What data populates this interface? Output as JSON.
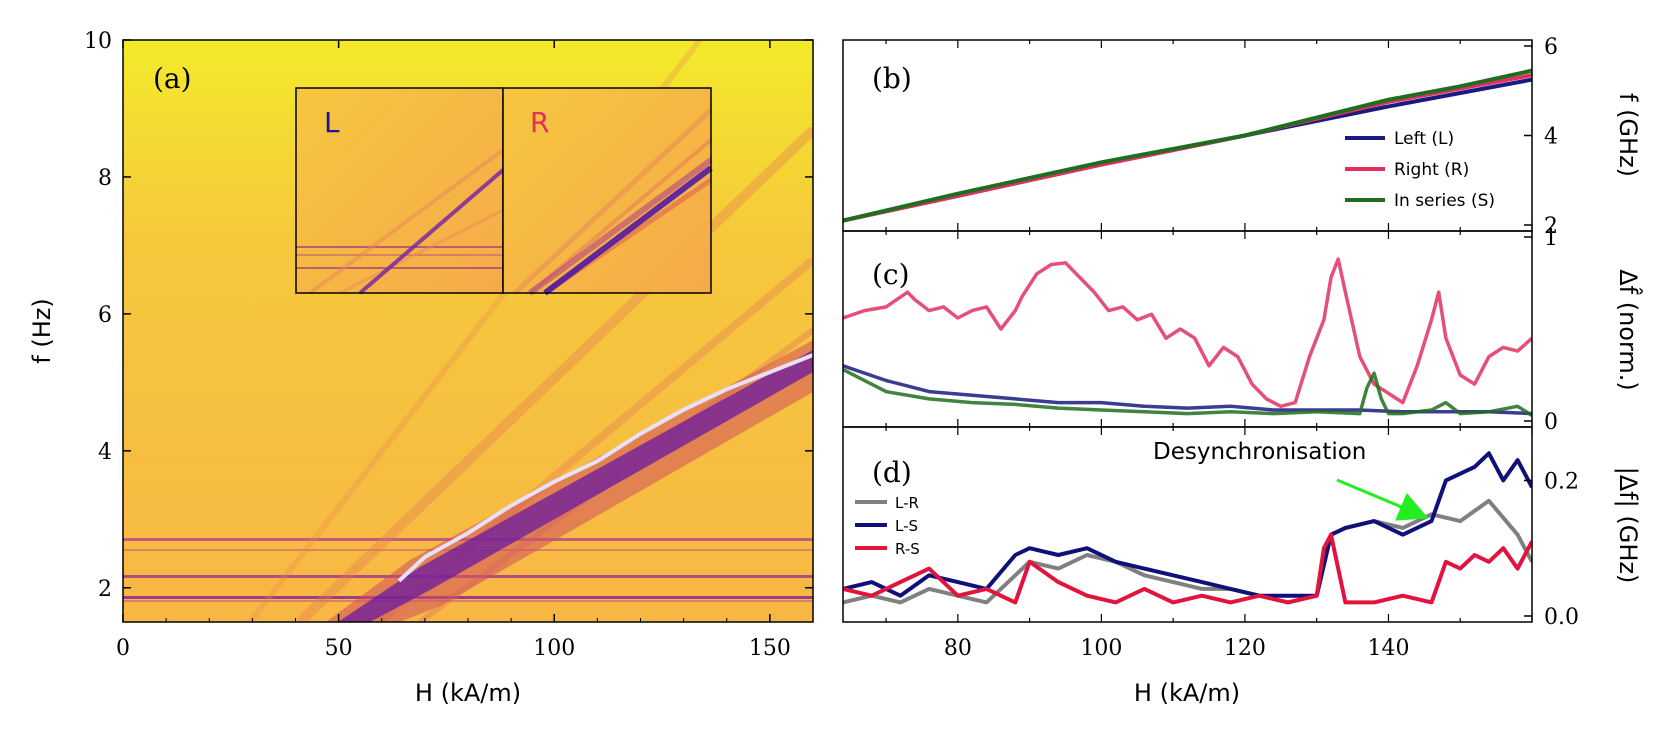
{
  "colors": {
    "left": "#1a1a80",
    "right": "#e03060",
    "series": "#1f6e1f",
    "lr": "#808080",
    "ls": "#10107a",
    "rs": "#e0143c",
    "trace": "#e8e0f8",
    "arrow": "#22ee22"
  },
  "chart_data": [
    {
      "id": "a",
      "type": "heatmap",
      "panel_label": "(a)",
      "xlabel": "H (kA/m)",
      "ylabel": "f (Hz)",
      "xlim": [
        0,
        160
      ],
      "ylim": [
        1.5,
        10
      ],
      "xticks": [
        "0",
        "50",
        "100",
        "150"
      ],
      "yticks": [
        "2",
        "4",
        "6",
        "8",
        "10"
      ],
      "trace": {
        "x": [
          64,
          70,
          80,
          90,
          100,
          110,
          120,
          130,
          140,
          150,
          160
        ],
        "y": [
          2.1,
          2.45,
          2.8,
          3.2,
          3.55,
          3.85,
          4.25,
          4.6,
          4.9,
          5.15,
          5.4
        ]
      },
      "inset_labels": [
        "L",
        "R"
      ]
    },
    {
      "id": "b",
      "type": "line",
      "panel_label": "(b)",
      "ylabel": "f (GHz)",
      "xlim": [
        64,
        160
      ],
      "ylim": [
        2,
        6
      ],
      "yticks": [
        "2",
        "4",
        "6"
      ],
      "series": [
        {
          "name": "Left (L)",
          "x": [
            64,
            80,
            100,
            120,
            140,
            150,
            160
          ],
          "values": [
            2.1,
            2.65,
            3.35,
            4.0,
            4.65,
            4.95,
            5.25
          ]
        },
        {
          "name": "Right (R)",
          "x": [
            64,
            80,
            100,
            120,
            140,
            150,
            160
          ],
          "values": [
            2.1,
            2.65,
            3.35,
            4.0,
            4.75,
            5.05,
            5.35
          ]
        },
        {
          "name": "In series (S)",
          "x": [
            64,
            80,
            100,
            120,
            140,
            150,
            160
          ],
          "values": [
            2.1,
            2.7,
            3.4,
            4.0,
            4.8,
            5.1,
            5.45
          ]
        }
      ]
    },
    {
      "id": "c",
      "type": "line",
      "panel_label": "(c)",
      "ylabel": "Δf̂ (norm.)",
      "xlim": [
        64,
        160
      ],
      "ylim": [
        0,
        1
      ],
      "yticks": [
        "0",
        "1"
      ],
      "series": [
        {
          "name": "Right (R)",
          "x": [
            64,
            67,
            70,
            73,
            74,
            76,
            78,
            80,
            82,
            84,
            86,
            88,
            89,
            91,
            93,
            95,
            97,
            99,
            101,
            103,
            105,
            107,
            109,
            111,
            113,
            115,
            117,
            119,
            121,
            123,
            125,
            127,
            129,
            131,
            132,
            133,
            134,
            136,
            138,
            140,
            142,
            144,
            146,
            147,
            148,
            150,
            152,
            154,
            156,
            158,
            160
          ],
          "values": [
            0.56,
            0.6,
            0.62,
            0.7,
            0.66,
            0.6,
            0.62,
            0.56,
            0.6,
            0.62,
            0.5,
            0.6,
            0.68,
            0.8,
            0.85,
            0.86,
            0.78,
            0.7,
            0.6,
            0.62,
            0.55,
            0.58,
            0.45,
            0.5,
            0.45,
            0.3,
            0.4,
            0.35,
            0.2,
            0.12,
            0.08,
            0.1,
            0.35,
            0.55,
            0.78,
            0.88,
            0.7,
            0.35,
            0.2,
            0.15,
            0.1,
            0.3,
            0.55,
            0.7,
            0.45,
            0.25,
            0.2,
            0.35,
            0.4,
            0.38,
            0.45
          ]
        },
        {
          "name": "Left (L)",
          "x": [
            64,
            70,
            76,
            82,
            88,
            94,
            100,
            106,
            112,
            118,
            124,
            130,
            136,
            142,
            148,
            154,
            160
          ],
          "values": [
            0.3,
            0.22,
            0.16,
            0.14,
            0.12,
            0.1,
            0.1,
            0.08,
            0.07,
            0.08,
            0.06,
            0.06,
            0.06,
            0.05,
            0.05,
            0.05,
            0.04
          ]
        },
        {
          "name": "In series (S)",
          "x": [
            64,
            70,
            76,
            82,
            88,
            94,
            100,
            106,
            112,
            118,
            124,
            130,
            136,
            137,
            138,
            139,
            140,
            142,
            146,
            148,
            150,
            154,
            158,
            160
          ],
          "values": [
            0.28,
            0.16,
            0.12,
            0.1,
            0.09,
            0.07,
            0.06,
            0.05,
            0.04,
            0.05,
            0.04,
            0.05,
            0.04,
            0.18,
            0.26,
            0.12,
            0.04,
            0.04,
            0.06,
            0.1,
            0.04,
            0.05,
            0.08,
            0.03
          ]
        }
      ]
    },
    {
      "id": "d",
      "type": "line",
      "panel_label": "(d)",
      "ylabel": "|Δf| (GHz)",
      "xlabel": "H (kA/m)",
      "xlim": [
        64,
        160
      ],
      "ylim": [
        0,
        0.27
      ],
      "yticks": [
        "0.0",
        "0.2"
      ],
      "xticks": [
        "80",
        "100",
        "120",
        "140"
      ],
      "annotation": "Desynchronisation",
      "series": [
        {
          "name": "L-R",
          "x": [
            64,
            68,
            72,
            76,
            80,
            84,
            88,
            90,
            94,
            98,
            102,
            106,
            110,
            114,
            118,
            122,
            126,
            130,
            132,
            134,
            138,
            142,
            146,
            150,
            154,
            158,
            160
          ],
          "values": [
            0.02,
            0.03,
            0.02,
            0.04,
            0.03,
            0.02,
            0.06,
            0.08,
            0.07,
            0.09,
            0.08,
            0.06,
            0.05,
            0.04,
            0.04,
            0.03,
            0.02,
            0.03,
            0.12,
            0.13,
            0.14,
            0.13,
            0.15,
            0.14,
            0.17,
            0.12,
            0.08
          ]
        },
        {
          "name": "L-S",
          "x": [
            64,
            68,
            72,
            76,
            80,
            84,
            88,
            90,
            94,
            98,
            102,
            106,
            110,
            114,
            118,
            122,
            126,
            130,
            132,
            134,
            138,
            142,
            146,
            148,
            150,
            152,
            154,
            156,
            158,
            160
          ],
          "values": [
            0.04,
            0.05,
            0.03,
            0.06,
            0.05,
            0.04,
            0.09,
            0.1,
            0.09,
            0.1,
            0.08,
            0.07,
            0.06,
            0.05,
            0.04,
            0.03,
            0.03,
            0.03,
            0.12,
            0.13,
            0.14,
            0.12,
            0.14,
            0.2,
            0.21,
            0.22,
            0.24,
            0.2,
            0.23,
            0.19
          ]
        },
        {
          "name": "R-S",
          "x": [
            64,
            68,
            72,
            76,
            80,
            84,
            88,
            90,
            94,
            98,
            102,
            106,
            110,
            114,
            118,
            122,
            126,
            130,
            131,
            132,
            134,
            138,
            142,
            146,
            148,
            150,
            152,
            154,
            156,
            158,
            160
          ],
          "values": [
            0.04,
            0.03,
            0.05,
            0.07,
            0.03,
            0.04,
            0.02,
            0.08,
            0.05,
            0.03,
            0.02,
            0.04,
            0.02,
            0.03,
            0.02,
            0.03,
            0.02,
            0.03,
            0.1,
            0.12,
            0.02,
            0.02,
            0.03,
            0.02,
            0.08,
            0.07,
            0.09,
            0.08,
            0.1,
            0.07,
            0.11
          ]
        }
      ]
    }
  ]
}
